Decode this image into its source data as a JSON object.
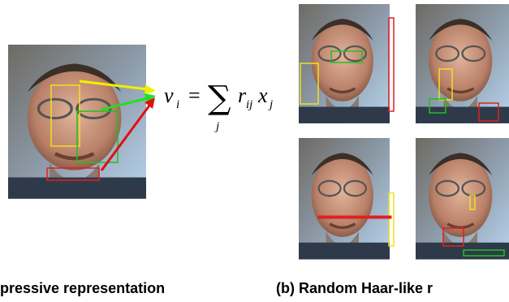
{
  "formula": {
    "lhs": "v",
    "lhs_sub": "i",
    "equals": "=",
    "sum": "∑",
    "sum_sub": "j",
    "factor1": "r",
    "factor1_sub": "ij",
    "factor2": "x",
    "factor2_sub": "j"
  },
  "captions": [
    "pressive representation",
    "(b) Random Haar-like r"
  ]
}
